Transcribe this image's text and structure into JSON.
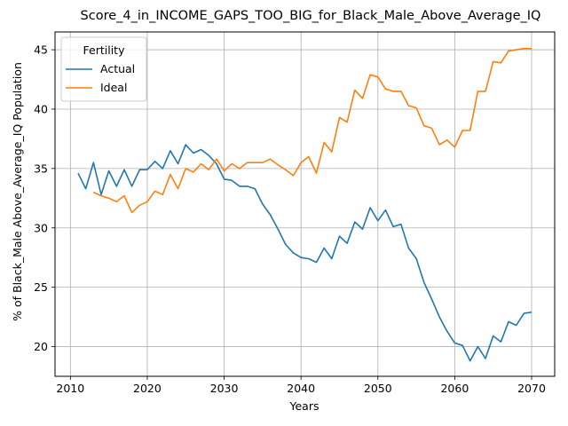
{
  "chart_data": {
    "type": "line",
    "title": "Score_4_in_INCOME_GAPS_TOO_BIG_for_Black_Male_Above_Average_IQ",
    "xlabel": "Years",
    "ylabel": "% of Black_Male Above_Average_IQ Population",
    "xlim": [
      2008.0,
      2073.0
    ],
    "ylim": [
      17.5,
      46.5
    ],
    "xticks": [
      2010,
      2020,
      2030,
      2040,
      2050,
      2060,
      2070
    ],
    "yticks": [
      20,
      25,
      30,
      35,
      40,
      45
    ],
    "grid": true,
    "legend": {
      "title": "Fertility",
      "position": "top-left"
    },
    "series": [
      {
        "name": "Actual",
        "color": "#1f77b4",
        "x": [
          2011,
          2012,
          2013,
          2014,
          2015,
          2016,
          2017,
          2018,
          2019,
          2020,
          2021,
          2022,
          2023,
          2024,
          2025,
          2026,
          2027,
          2028,
          2029,
          2030,
          2031,
          2032,
          2033,
          2034,
          2035,
          2036,
          2037,
          2038,
          2039,
          2040,
          2041,
          2042,
          2043,
          2044,
          2045,
          2046,
          2047,
          2048,
          2049,
          2050,
          2051,
          2052,
          2053,
          2054,
          2055,
          2056,
          2057,
          2058,
          2059,
          2060,
          2061,
          2062,
          2063,
          2064,
          2065,
          2066,
          2067,
          2068,
          2069,
          2070
        ],
        "y": [
          34.6,
          33.3,
          35.5,
          32.8,
          34.8,
          33.5,
          34.9,
          33.5,
          34.9,
          34.9,
          35.6,
          35.0,
          36.5,
          35.4,
          37.0,
          36.3,
          36.6,
          36.1,
          35.4,
          34.1,
          34.0,
          33.5,
          33.5,
          33.3,
          32.0,
          31.1,
          29.9,
          28.6,
          27.9,
          27.5,
          27.4,
          27.1,
          28.3,
          27.4,
          29.3,
          28.7,
          30.5,
          29.9,
          31.7,
          30.6,
          31.5,
          30.1,
          30.3,
          28.3,
          27.4,
          25.4,
          24.0,
          22.5,
          21.3,
          20.3,
          20.1,
          18.8,
          20.0,
          19.0,
          20.9,
          20.4,
          22.1,
          21.8,
          22.8,
          22.9
        ]
      },
      {
        "name": "Ideal",
        "color": "#ff7f0e",
        "x": [
          2013,
          2014,
          2015,
          2016,
          2017,
          2018,
          2019,
          2020,
          2021,
          2022,
          2023,
          2024,
          2025,
          2026,
          2027,
          2028,
          2029,
          2030,
          2031,
          2032,
          2033,
          2034,
          2035,
          2036,
          2037,
          2038,
          2039,
          2040,
          2041,
          2042,
          2043,
          2044,
          2045,
          2046,
          2047,
          2048,
          2049,
          2050,
          2051,
          2052,
          2053,
          2054,
          2055,
          2056,
          2057,
          2058,
          2059,
          2060,
          2061,
          2062,
          2063,
          2064,
          2065,
          2066,
          2067,
          2068,
          2069,
          2070
        ],
        "y": [
          33.0,
          32.7,
          32.5,
          32.2,
          32.7,
          31.3,
          31.9,
          32.2,
          33.1,
          32.8,
          34.5,
          33.3,
          35.0,
          34.7,
          35.4,
          34.9,
          35.8,
          34.8,
          35.4,
          35.0,
          35.5,
          35.5,
          35.5,
          35.8,
          35.3,
          34.9,
          34.4,
          35.5,
          36.0,
          34.6,
          37.2,
          36.4,
          39.3,
          38.9,
          41.6,
          40.9,
          42.9,
          42.7,
          41.7,
          41.5,
          41.5,
          40.3,
          40.1,
          38.6,
          38.4,
          37.0,
          37.4,
          36.8,
          38.2,
          38.2,
          41.5,
          41.5,
          44.0,
          43.9,
          44.9,
          45.0,
          45.1,
          45.1
        ]
      }
    ]
  }
}
